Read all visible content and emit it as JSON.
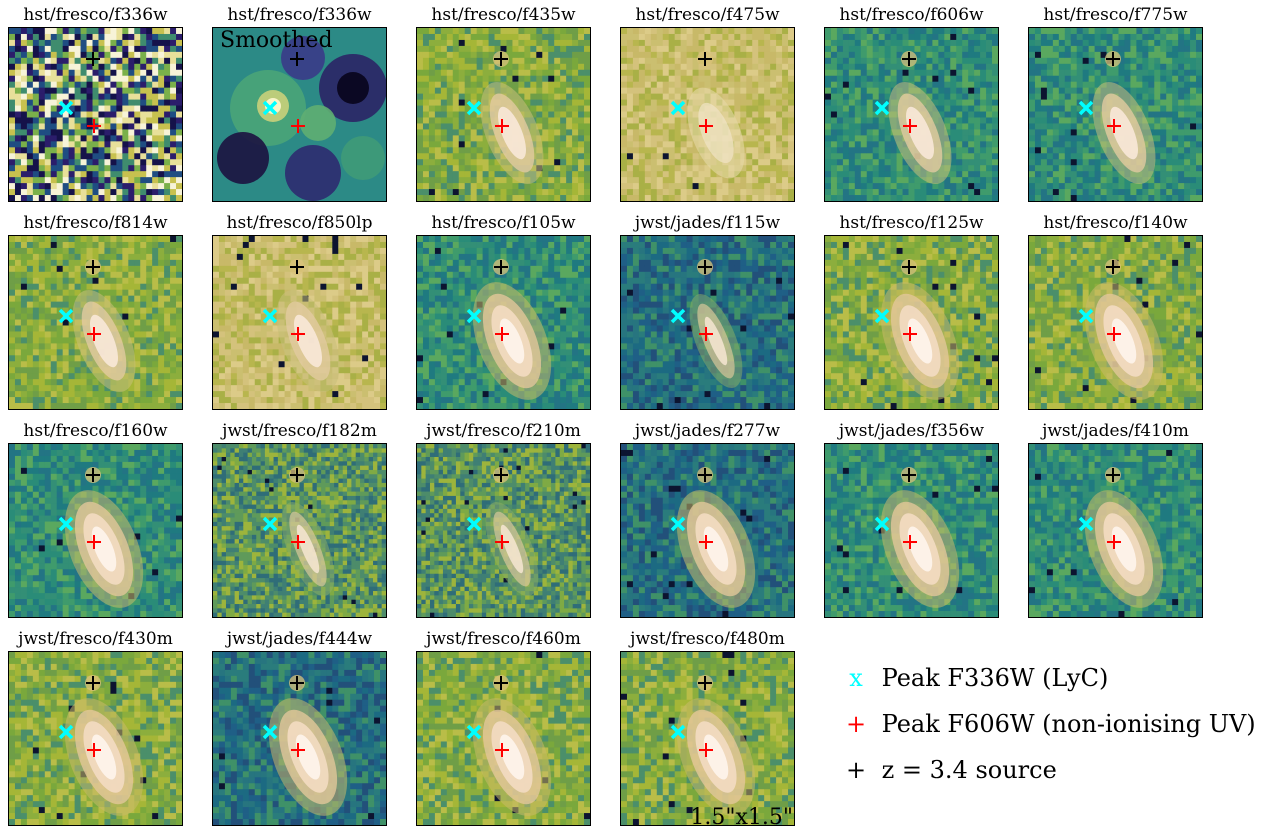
{
  "panels": [
    {
      "title": "hst/fresco/f336w",
      "palette": "noisy",
      "shape": "none"
    },
    {
      "title": "hst/fresco/f336w",
      "palette": "smoothed",
      "shape": "smooth",
      "overlay_text": "Smoothed"
    },
    {
      "title": "hst/fresco/f435w",
      "palette": "green",
      "shape": "galaxy"
    },
    {
      "title": "hst/fresco/f475w",
      "palette": "tan",
      "shape": "galaxy-faint"
    },
    {
      "title": "hst/fresco/f606w",
      "palette": "teal",
      "shape": "galaxy"
    },
    {
      "title": "hst/fresco/f775w",
      "palette": "teal",
      "shape": "galaxy"
    },
    {
      "title": "hst/fresco/f814w",
      "palette": "green",
      "shape": "galaxy"
    },
    {
      "title": "hst/fresco/f850lp",
      "palette": "tan",
      "shape": "galaxy"
    },
    {
      "title": "hst/fresco/f105w",
      "palette": "teal",
      "shape": "galaxy-bright"
    },
    {
      "title": "jwst/jades/f115w",
      "palette": "teal-dark",
      "shape": "galaxy-clumpy"
    },
    {
      "title": "hst/fresco/f125w",
      "palette": "green",
      "shape": "galaxy-bright"
    },
    {
      "title": "hst/fresco/f140w",
      "palette": "green",
      "shape": "galaxy-bright"
    },
    {
      "title": "hst/fresco/f160w",
      "palette": "teal",
      "shape": "galaxy-bright"
    },
    {
      "title": "jwst/fresco/f182m",
      "palette": "green-fine",
      "shape": "galaxy-clumpy"
    },
    {
      "title": "jwst/fresco/f210m",
      "palette": "green-fine",
      "shape": "galaxy-clumpy"
    },
    {
      "title": "jwst/jades/f277w",
      "palette": "teal-dark",
      "shape": "galaxy-bright"
    },
    {
      "title": "jwst/jades/f356w",
      "palette": "teal",
      "shape": "galaxy-bright"
    },
    {
      "title": "jwst/jades/f410m",
      "palette": "teal",
      "shape": "galaxy-bright"
    },
    {
      "title": "jwst/fresco/f430m",
      "palette": "green",
      "shape": "galaxy-bright"
    },
    {
      "title": "jwst/jades/f444w",
      "palette": "teal-dark",
      "shape": "galaxy-bright"
    },
    {
      "title": "jwst/fresco/f460m",
      "palette": "green",
      "shape": "galaxy-bright"
    },
    {
      "title": "jwst/fresco/f480m",
      "palette": "green",
      "shape": "galaxy-bright",
      "overlay_text": "1.5\"x1.5\""
    }
  ],
  "legend": {
    "items": [
      {
        "symbol": "x",
        "color": "#00ffff",
        "label": "Peak F336W (LyC)"
      },
      {
        "symbol": "+",
        "color": "#ff0000",
        "label": "Peak F606W (non-ionising UV)"
      },
      {
        "symbol": "+",
        "color": "#000000",
        "label": "z = 3.4 source"
      }
    ]
  },
  "colors": {
    "cyan_marker": "#00ffff",
    "red_marker": "#ff0000",
    "black_marker": "#000000"
  }
}
